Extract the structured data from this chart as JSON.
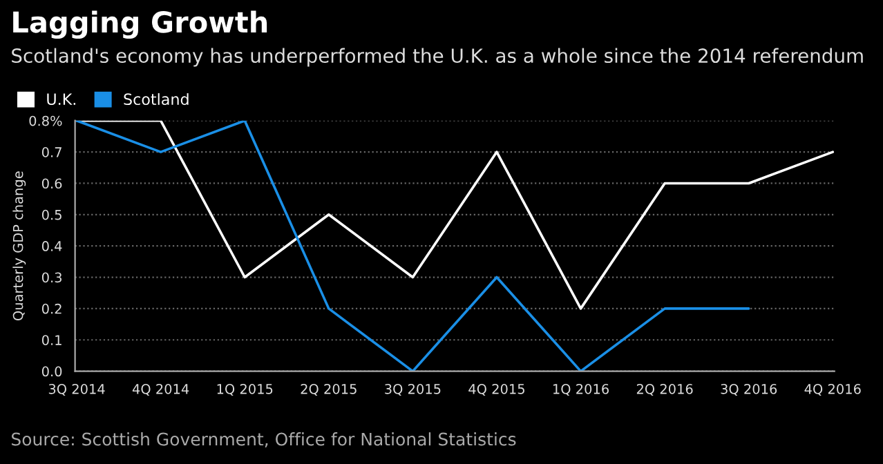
{
  "chart_data": {
    "type": "line",
    "title": "Lagging Growth",
    "subtitle": "Scotland's economy has underperformed the U.K. as a whole since the 2014 referendum",
    "ylabel": "Quarterly GDP change",
    "categories": [
      "3Q 2014",
      "4Q 2014",
      "1Q 2015",
      "2Q 2015",
      "3Q 2015",
      "4Q 2015",
      "1Q 2016",
      "2Q 2016",
      "3Q 2016",
      "4Q 2016"
    ],
    "series": [
      {
        "name": "U.K.",
        "color": "#ffffff",
        "values": [
          0.8,
          0.8,
          0.3,
          0.5,
          0.3,
          0.7,
          0.2,
          0.6,
          0.6,
          0.7
        ]
      },
      {
        "name": "Scotland",
        "color": "#1a8fe6",
        "values": [
          0.8,
          0.7,
          0.8,
          0.2,
          0.0,
          0.3,
          0.0,
          0.2,
          0.2,
          null
        ]
      }
    ],
    "ylim": [
      0,
      0.8
    ],
    "yticks": [
      {
        "value": 0,
        "label": "0.0"
      },
      0.1,
      0.2,
      0.3,
      0.4,
      0.5,
      0.6,
      0.7,
      {
        "value": 0.8,
        "label": "0.8%"
      }
    ],
    "grid": "y",
    "legend": "top left",
    "marker": "none",
    "line_style": "solid",
    "annotations": [
      "Source: Scottish Government, Office for National Statistics"
    ]
  }
}
